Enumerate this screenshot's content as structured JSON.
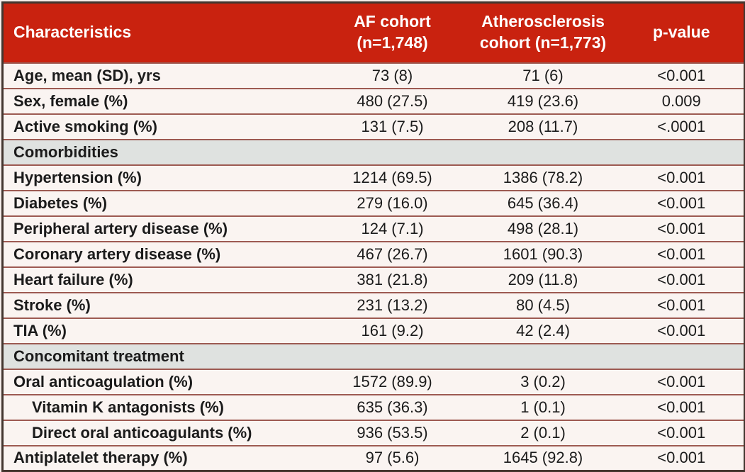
{
  "table": {
    "header": {
      "characteristics": "Characteristics",
      "af_cohort_line1": "AF cohort",
      "af_cohort_line2": "(n=1,748)",
      "athero_line1": "Atherosclerosis",
      "athero_line2": "cohort (n=1,773)",
      "p_value": "p-value"
    },
    "rows": [
      {
        "type": "data",
        "label": "Age, mean (SD), yrs",
        "af": "73 (8)",
        "athero": "71 (6)",
        "p": "<0.001",
        "indent": false
      },
      {
        "type": "data",
        "label": "Sex, female (%)",
        "af": "480 (27.5)",
        "athero": "419 (23.6)",
        "p": "0.009",
        "indent": false
      },
      {
        "type": "data",
        "label": "Active smoking (%)",
        "af": "131 (7.5)",
        "athero": "208 (11.7)",
        "p": "<.0001",
        "indent": false
      },
      {
        "type": "section",
        "label": "Comorbidities"
      },
      {
        "type": "data",
        "label": "Hypertension (%)",
        "af": "1214 (69.5)",
        "athero": "1386 (78.2)",
        "p": "<0.001",
        "indent": false
      },
      {
        "type": "data",
        "label": "Diabetes (%)",
        "af": "279 (16.0)",
        "athero": "645 (36.4)",
        "p": "<0.001",
        "indent": false
      },
      {
        "type": "data",
        "label": "Peripheral artery disease (%)",
        "af": "124 (7.1)",
        "athero": "498 (28.1)",
        "p": "<0.001",
        "indent": false
      },
      {
        "type": "data",
        "label": "Coronary artery disease (%)",
        "af": "467 (26.7)",
        "athero": "1601 (90.3)",
        "p": "<0.001",
        "indent": false
      },
      {
        "type": "data",
        "label": "Heart failure (%)",
        "af": "381 (21.8)",
        "athero": "209 (11.8)",
        "p": "<0.001",
        "indent": false
      },
      {
        "type": "data",
        "label": "Stroke (%)",
        "af": "231 (13.2)",
        "athero": "80 (4.5)",
        "p": "<0.001",
        "indent": false
      },
      {
        "type": "data",
        "label": "TIA (%)",
        "af": "161 (9.2)",
        "athero": "42 (2.4)",
        "p": "<0.001",
        "indent": false
      },
      {
        "type": "section",
        "label": "Concomitant treatment"
      },
      {
        "type": "data",
        "label": "Oral anticoagulation (%)",
        "af": "1572 (89.9)",
        "athero": "3 (0.2)",
        "p": "<0.001",
        "indent": false
      },
      {
        "type": "data",
        "label": "Vitamin K antagonists (%)",
        "af": "635 (36.3)",
        "athero": "1 (0.1)",
        "p": "<0.001",
        "indent": true
      },
      {
        "type": "data",
        "label": "Direct oral anticoagulants (%)",
        "af": "936 (53.5)",
        "athero": "2 (0.1)",
        "p": "<0.001",
        "indent": true
      },
      {
        "type": "data",
        "label": "Antiplatelet therapy (%)",
        "af": "97 (5.6)",
        "athero": "1645 (92.8)",
        "p": "<0.001",
        "indent": false
      }
    ],
    "colors": {
      "header_bg": "#c9220f",
      "header_text": "#ffffff",
      "row_bg": "#faf4f1",
      "section_bg": "#dfe2e0",
      "divider": "#9d5a52",
      "outer_border": "#43362f",
      "text": "#1b1b1b",
      "page_bg": "#f5edea"
    }
  }
}
